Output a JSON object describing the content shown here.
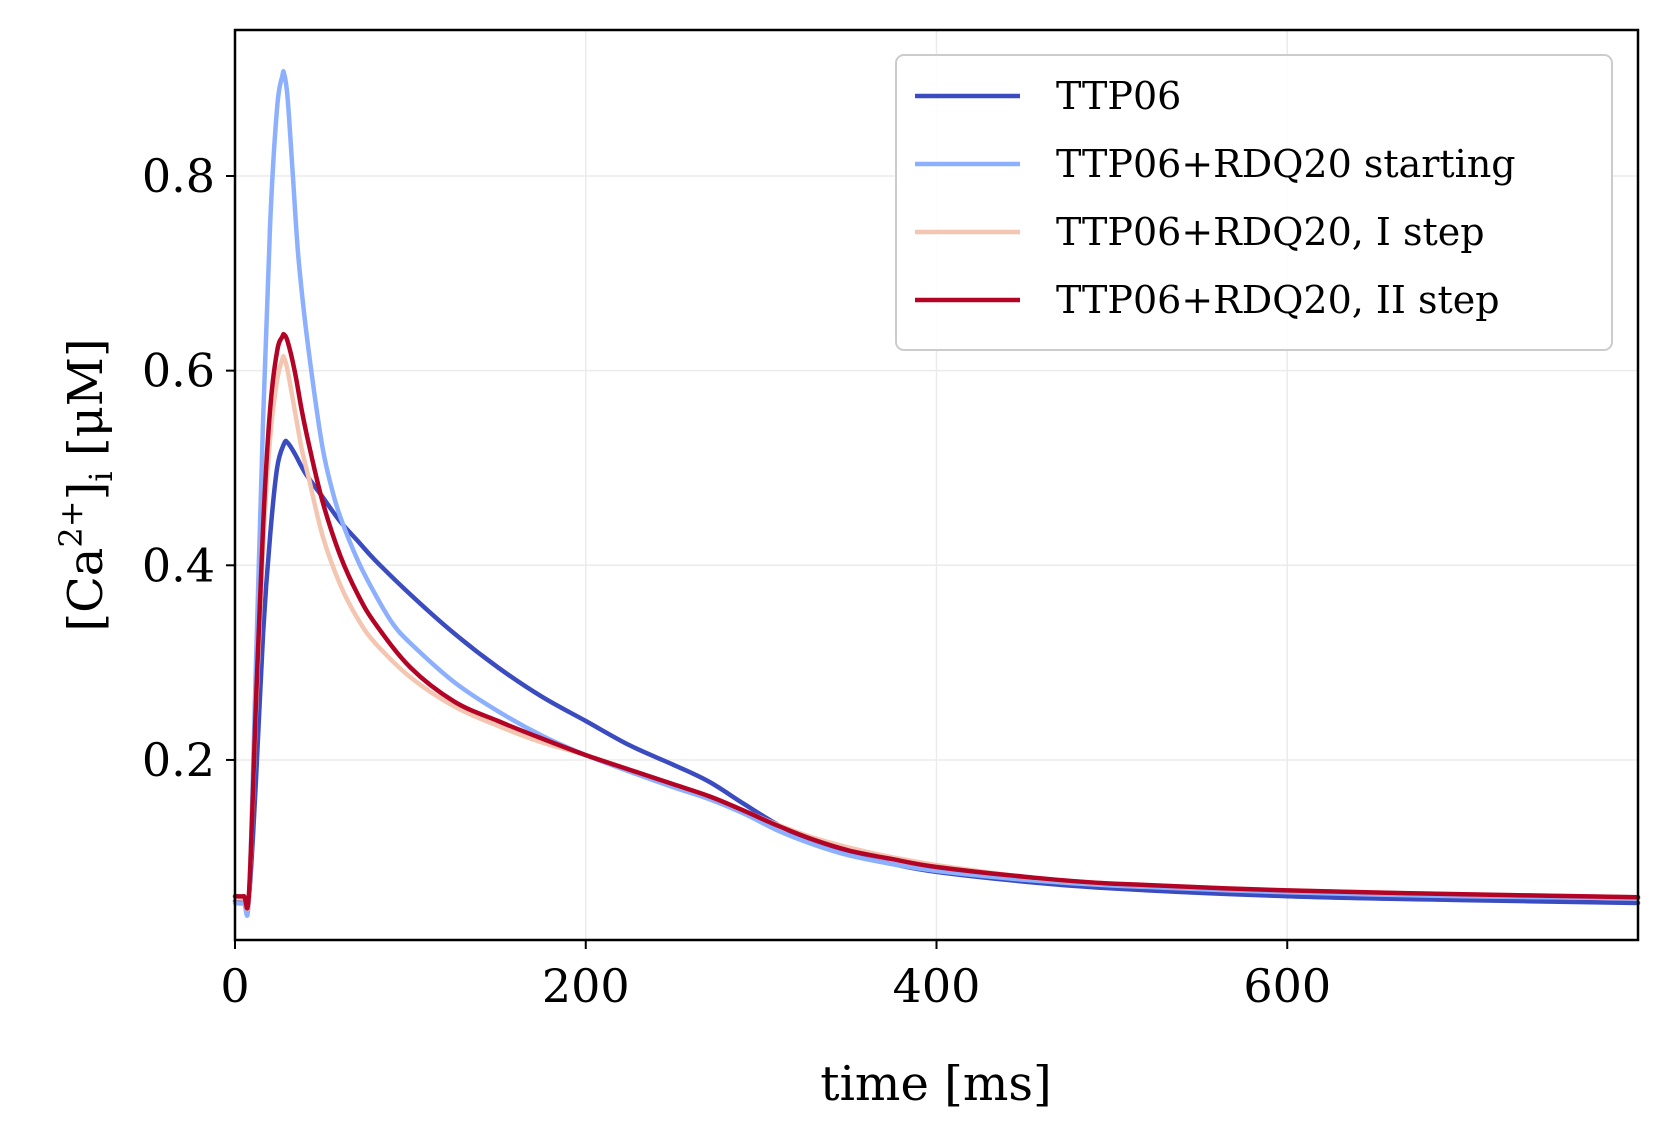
{
  "chart_data": {
    "type": "line",
    "title": "",
    "xlabel": "time [ms]",
    "ylabel_parts": {
      "prefix": "[Ca",
      "superscript": "2+",
      "suffix": "]",
      "subscript": "i",
      "unit": "[μM]"
    },
    "xlim": [
      0,
      800
    ],
    "ylim": [
      0.015,
      0.95
    ],
    "xticks": [
      0,
      200,
      400,
      600
    ],
    "xtick_labels": [
      "0",
      "200",
      "400",
      "600"
    ],
    "yticks": [
      0.2,
      0.4,
      0.6,
      0.8
    ],
    "ytick_labels": [
      "0.2",
      "0.4",
      "0.6",
      "0.8"
    ],
    "grid": true,
    "legend_position": "top-right",
    "series": [
      {
        "name": "TTP06",
        "color": "#3b4cc0",
        "x": [
          0,
          5,
          8,
          12,
          16,
          20,
          24,
          28,
          30,
          34,
          40,
          50,
          60,
          70,
          80,
          100,
          125,
          150,
          175,
          200,
          225,
          250,
          270,
          290,
          310,
          330,
          350,
          375,
          400,
          450,
          500,
          600,
          700,
          800
        ],
        "y": [
          0.055,
          0.055,
          0.06,
          0.18,
          0.33,
          0.43,
          0.5,
          0.525,
          0.526,
          0.515,
          0.495,
          0.47,
          0.445,
          0.425,
          0.405,
          0.37,
          0.33,
          0.295,
          0.265,
          0.24,
          0.215,
          0.195,
          0.178,
          0.155,
          0.133,
          0.115,
          0.103,
          0.093,
          0.085,
          0.075,
          0.068,
          0.06,
          0.056,
          0.053
        ]
      },
      {
        "name": "TTP06+RDQ20 starting",
        "color": "#8db0fe",
        "x": [
          0,
          5,
          8,
          12,
          16,
          20,
          24,
          27,
          28,
          30,
          33,
          36,
          40,
          45,
          50,
          55,
          60,
          70,
          80,
          90,
          100,
          125,
          150,
          175,
          200,
          225,
          250,
          270,
          290,
          310,
          330,
          350,
          375,
          400,
          450,
          500,
          600,
          700,
          800
        ],
        "y": [
          0.053,
          0.053,
          0.06,
          0.3,
          0.55,
          0.75,
          0.87,
          0.903,
          0.905,
          0.88,
          0.8,
          0.72,
          0.65,
          0.58,
          0.52,
          0.48,
          0.45,
          0.405,
          0.37,
          0.34,
          0.32,
          0.28,
          0.25,
          0.225,
          0.205,
          0.188,
          0.172,
          0.16,
          0.145,
          0.127,
          0.113,
          0.102,
          0.093,
          0.086,
          0.077,
          0.071,
          0.064,
          0.06,
          0.058
        ]
      },
      {
        "name": "TTP06+RDQ20, I step",
        "color": "#f4c6b1",
        "x": [
          0,
          5,
          8,
          12,
          16,
          20,
          24,
          27,
          28,
          30,
          34,
          38,
          42,
          50,
          60,
          70,
          80,
          100,
          125,
          150,
          175,
          200,
          225,
          250,
          270,
          290,
          310,
          330,
          350,
          375,
          400,
          450,
          500,
          600,
          700,
          800
        ],
        "y": [
          0.058,
          0.058,
          0.062,
          0.25,
          0.42,
          0.53,
          0.59,
          0.612,
          0.613,
          0.6,
          0.56,
          0.52,
          0.49,
          0.43,
          0.38,
          0.345,
          0.32,
          0.285,
          0.255,
          0.235,
          0.218,
          0.205,
          0.19,
          0.175,
          0.163,
          0.148,
          0.133,
          0.12,
          0.11,
          0.1,
          0.092,
          0.08,
          0.073,
          0.066,
          0.062,
          0.059
        ]
      },
      {
        "name": "TTP06+RDQ20, II step",
        "color": "#b40426",
        "x": [
          0,
          5,
          8,
          12,
          16,
          20,
          24,
          27,
          28,
          30,
          34,
          38,
          42,
          50,
          60,
          70,
          80,
          100,
          125,
          150,
          175,
          200,
          225,
          250,
          270,
          290,
          310,
          330,
          350,
          375,
          400,
          450,
          500,
          600,
          700,
          800
        ],
        "y": [
          0.06,
          0.06,
          0.063,
          0.26,
          0.44,
          0.56,
          0.62,
          0.635,
          0.637,
          0.63,
          0.6,
          0.56,
          0.525,
          0.465,
          0.41,
          0.37,
          0.34,
          0.295,
          0.26,
          0.24,
          0.222,
          0.205,
          0.19,
          0.175,
          0.163,
          0.148,
          0.132,
          0.118,
          0.107,
          0.098,
          0.09,
          0.08,
          0.073,
          0.066,
          0.062,
          0.059
        ]
      }
    ]
  }
}
